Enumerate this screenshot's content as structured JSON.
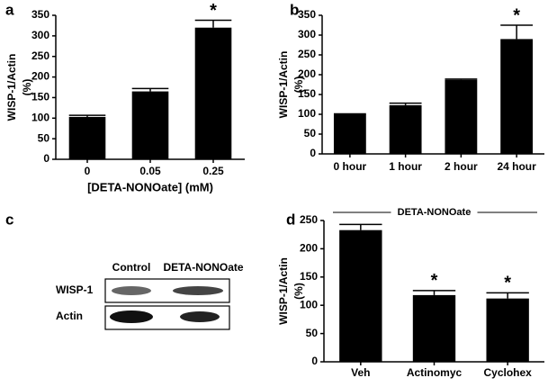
{
  "chart_data": [
    {
      "type": "bar",
      "panel": "a",
      "ylabel": [
        "WISP-1/Actin",
        "(%)"
      ],
      "xlabel": "[DETA-NONOate] (mM)",
      "categories": [
        "0",
        "0.05",
        "0.25"
      ],
      "values": [
        103,
        165,
        320
      ],
      "errors": [
        4,
        7,
        18
      ],
      "color": "#000000",
      "annotations": [
        {
          "index": 2,
          "text": "*"
        }
      ],
      "ylim": [
        0,
        350
      ],
      "yticks": [
        0,
        50,
        100,
        150,
        200,
        250,
        300,
        350
      ]
    },
    {
      "type": "bar",
      "panel": "b",
      "ylabel": [
        "WISP-1/Actin",
        "(%)"
      ],
      "categories": [
        "0 hour",
        "1 hour",
        "2 hour",
        "24 hour"
      ],
      "values": [
        100,
        123,
        187,
        290
      ],
      "errors": [
        1,
        5,
        2,
        35
      ],
      "color": "#000000",
      "annotations": [
        {
          "index": 3,
          "text": "*"
        }
      ],
      "ylim": [
        0,
        350
      ],
      "yticks": [
        0,
        50,
        100,
        150,
        200,
        250,
        300,
        350
      ]
    },
    {
      "type": "bar",
      "panel": "d",
      "ylabel": [
        "WISP-1/Actin",
        "(%)"
      ],
      "header": "DETA-NONOate",
      "categories": [
        "Veh",
        "Actinomyc",
        "Cyclohex"
      ],
      "values": [
        233,
        118,
        112
      ],
      "errors": [
        10,
        8,
        10
      ],
      "color": "#000000",
      "annotations": [
        {
          "index": 1,
          "text": "*"
        },
        {
          "index": 2,
          "text": "*"
        }
      ],
      "ylim": [
        0,
        250
      ],
      "yticks": [
        0,
        50,
        100,
        150,
        200,
        250
      ]
    }
  ],
  "blot": {
    "panel": "c",
    "columns": [
      "Control",
      "DETA-NONOate"
    ],
    "rows": [
      "WISP-1",
      "Actin"
    ]
  }
}
